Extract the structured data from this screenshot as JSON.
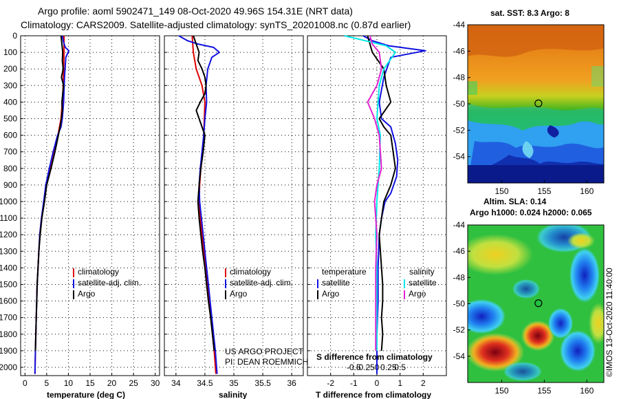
{
  "header": {
    "line1": "Argo profile: aoml 5902471_149 08-Oct-2020 49.96S 154.31E (NRT data)",
    "line2": "Climatology: CARS2009. Satellite-adjusted climatology: synTS_20201008.nc (0.87d earlier)"
  },
  "colors": {
    "climatology": "#e00000",
    "satellite": "#1010e0",
    "argo": "#000000",
    "sat_salinity": "#00e8e8",
    "argo_salinity": "#e020d0"
  },
  "chart_data": [
    {
      "type": "line",
      "name": "temperature-panel",
      "xlabel": "temperature (deg C)",
      "ylabel": "depth",
      "xlim": [
        -1,
        31
      ],
      "ylim": [
        2050,
        0
      ],
      "xticks": [
        0,
        5,
        10,
        15,
        20,
        25,
        30
      ],
      "xtick_labels": [
        "0",
        "5",
        "10",
        "15",
        "20",
        "25",
        "30"
      ],
      "yticks": [
        0,
        100,
        200,
        300,
        400,
        500,
        600,
        700,
        800,
        900,
        1000,
        1100,
        1200,
        1300,
        1400,
        1500,
        1600,
        1700,
        1800,
        1900,
        2000
      ],
      "ytick_labels": [
        "0",
        "100",
        "200",
        "300",
        "400",
        "500",
        "600",
        "700",
        "800",
        "900",
        "1000",
        "1100",
        "1200",
        "1300",
        "1400",
        "1500",
        "1600",
        "1700",
        "1800",
        "1900",
        "2000"
      ],
      "legend": [
        "climatology",
        "satellite-adj. clim.",
        "Argo"
      ],
      "series": [
        {
          "name": "climatology",
          "color": "#e00000",
          "x": [
            9.0,
            9.0,
            8.9,
            8.8,
            8.6,
            8.3,
            7.6,
            6.6,
            5.7,
            4.9,
            4.4,
            3.8,
            3.4,
            3.2,
            3.0,
            2.8,
            2.7,
            2.6,
            2.5,
            2.4,
            2.3
          ],
          "depth": [
            0,
            100,
            200,
            300,
            400,
            500,
            600,
            700,
            800,
            900,
            1000,
            1100,
            1200,
            1300,
            1400,
            1500,
            1600,
            1700,
            1800,
            1900,
            2040
          ]
        },
        {
          "name": "satellite-adj. clim.",
          "color": "#1010e0",
          "x": [
            8.6,
            8.9,
            9.3,
            10.1,
            9.4,
            9.1,
            8.9,
            8.6,
            8.3,
            7.5,
            6.5,
            5.6,
            4.8,
            4.3,
            3.8,
            3.4,
            3.2,
            3.0,
            2.8,
            2.7,
            2.6,
            2.5,
            2.4,
            2.3
          ],
          "depth": [
            0,
            40,
            70,
            90,
            130,
            250,
            400,
            500,
            550,
            600,
            700,
            800,
            900,
            1000,
            1100,
            1200,
            1300,
            1400,
            1500,
            1600,
            1700,
            1800,
            1900,
            2040
          ]
        },
        {
          "name": "Argo",
          "color": "#000000",
          "x": [
            8.3,
            8.5,
            8.7,
            8.6,
            8.8,
            8.4,
            8.9,
            8.7,
            8.5,
            8.6,
            8.4,
            8.1,
            7.7,
            6.9,
            6.0,
            5.0,
            4.5,
            3.9,
            3.5,
            3.2,
            3.0,
            2.8,
            2.7,
            2.6,
            2.5,
            2.4
          ],
          "depth": [
            0,
            50,
            100,
            150,
            200,
            250,
            300,
            350,
            400,
            450,
            500,
            550,
            600,
            700,
            800,
            900,
            1000,
            1100,
            1200,
            1300,
            1400,
            1500,
            1600,
            1700,
            1800,
            1900
          ]
        }
      ]
    },
    {
      "type": "line",
      "name": "salinity-panel",
      "xlabel": "salinity",
      "xlim": [
        33.8,
        36.2
      ],
      "ylim": [
        2050,
        0
      ],
      "xticks": [
        34,
        34.5,
        35,
        35.5,
        36
      ],
      "xtick_labels": [
        "34",
        "34.5",
        "35",
        "35.5",
        "36"
      ],
      "legend": [
        "climatology",
        "satellite-adj. clim.",
        "Argo"
      ],
      "annotation": [
        "US ARGO PROJECT",
        "PI: DEAN ROEMMICH"
      ],
      "series": [
        {
          "name": "climatology",
          "color": "#e00000",
          "x": [
            34.28,
            34.3,
            34.35,
            34.45,
            34.5,
            34.49,
            34.48,
            34.46,
            34.43,
            34.41,
            34.4,
            34.42,
            34.45,
            34.48,
            34.51,
            34.54,
            34.57,
            34.6,
            34.63,
            34.66,
            34.69
          ],
          "depth": [
            0,
            100,
            200,
            300,
            400,
            500,
            600,
            700,
            800,
            900,
            1000,
            1100,
            1200,
            1300,
            1400,
            1500,
            1600,
            1700,
            1800,
            1900,
            2040
          ]
        },
        {
          "name": "satellite-adj. clim.",
          "color": "#1010e0",
          "x": [
            34.05,
            34.2,
            34.38,
            34.65,
            34.75,
            34.62,
            34.55,
            34.52,
            34.53,
            34.5,
            34.48,
            34.45,
            34.42,
            34.4,
            34.41,
            34.44,
            34.47,
            34.5,
            34.53,
            34.56,
            34.59,
            34.62,
            34.65,
            34.68,
            34.71
          ],
          "depth": [
            0,
            30,
            50,
            70,
            100,
            130,
            200,
            300,
            400,
            500,
            600,
            700,
            800,
            900,
            1000,
            1100,
            1200,
            1300,
            1400,
            1500,
            1600,
            1700,
            1800,
            1900,
            2040
          ]
        },
        {
          "name": "Argo",
          "color": "#000000",
          "x": [
            34.3,
            34.35,
            34.4,
            34.38,
            34.45,
            34.5,
            34.52,
            34.5,
            34.42,
            34.35,
            34.4,
            34.45,
            34.5,
            34.47,
            34.43,
            34.4,
            34.38,
            34.4,
            34.43,
            34.46,
            34.5,
            34.53,
            34.56,
            34.6,
            34.63,
            34.66
          ],
          "depth": [
            0,
            50,
            100,
            150,
            200,
            250,
            300,
            350,
            400,
            450,
            500,
            550,
            600,
            700,
            800,
            900,
            1000,
            1100,
            1200,
            1300,
            1400,
            1500,
            1600,
            1700,
            1800,
            1900
          ]
        }
      ]
    },
    {
      "type": "line",
      "name": "difference-panel",
      "xlabel": "T difference from climatology",
      "xlabel_top": "S difference from climatology",
      "xlim": [
        -3,
        3
      ],
      "ylim": [
        2050,
        0
      ],
      "xticks": [
        -2,
        -1,
        0,
        1,
        2
      ],
      "xtick_labels": [
        "-2",
        "-1",
        "0",
        "1",
        "2"
      ],
      "s_xticks": [
        -0.5,
        -0.25,
        0,
        0.25,
        0.5
      ],
      "s_xtick_labels": [
        "-0.5",
        "-0.25",
        "0",
        "0.25",
        "0.5"
      ],
      "legend_headers": [
        "temperature",
        "salinity"
      ],
      "legend_left": [
        "satellite",
        "Argo"
      ],
      "legend_right": [
        "satellite",
        "Argo"
      ],
      "series": [
        {
          "name": "T satellite",
          "color": "#1010e0",
          "x": [
            -0.6,
            -0.2,
            0.5,
            2.1,
            0.6,
            0.3,
            0.1,
            0.2,
            0.6,
            0.8,
            0.9,
            0.85,
            0.6,
            0.35,
            0.2,
            0.1,
            0.05,
            0.05,
            0.0,
            0.0,
            0.0
          ],
          "depth": [
            0,
            30,
            60,
            90,
            130,
            250,
            400,
            500,
            550,
            650,
            750,
            850,
            950,
            1000,
            1100,
            1200,
            1400,
            1600,
            1800,
            1900,
            2040
          ]
        },
        {
          "name": "T Argo",
          "color": "#000000",
          "x": [
            -0.4,
            -0.3,
            -0.2,
            0.3,
            0.4,
            0.6,
            0.1,
            0.3,
            0.6,
            0.7,
            0.8,
            0.6,
            0.3,
            0.2,
            0.1,
            0.2,
            0.25,
            0.25,
            0.2,
            0.25,
            0.2
          ],
          "depth": [
            0,
            50,
            100,
            200,
            300,
            400,
            500,
            550,
            600,
            700,
            800,
            900,
            1000,
            1100,
            1200,
            1400,
            1500,
            1600,
            1700,
            1800,
            1900
          ]
        },
        {
          "name": "S satellite",
          "color": "#00e8e8",
          "x": [
            -1.4,
            -0.5,
            0.4,
            0.8,
            0.3,
            0.1,
            0.0,
            0.15,
            0.1,
            0.0,
            -0.05,
            0.0,
            0.0,
            0.0,
            0.0
          ],
          "depth": [
            0,
            30,
            60,
            100,
            200,
            300,
            500,
            600,
            800,
            1000,
            1200,
            1400,
            1600,
            1800,
            1900
          ]
        },
        {
          "name": "S Argo",
          "color": "#e020d0",
          "x": [
            -0.3,
            -0.2,
            0.1,
            0.2,
            0.0,
            -0.4,
            -0.1,
            0.1,
            0.2,
            0.0,
            -0.1,
            0.0,
            -0.05,
            -0.05,
            -0.05,
            -0.05
          ],
          "depth": [
            0,
            50,
            100,
            200,
            300,
            400,
            500,
            600,
            800,
            900,
            1000,
            1200,
            1400,
            1600,
            1800,
            1900
          ]
        }
      ]
    }
  ],
  "maps": [
    {
      "title": "sat. SST: 8.3 Argo: 8",
      "xticks": [
        150,
        155,
        160
      ],
      "xtick_labels": [
        "150",
        "155",
        "160"
      ],
      "yticks": [
        -44,
        -46,
        -48,
        -50,
        -52,
        -54
      ],
      "ytick_labels": [
        "-44",
        "-46",
        "-48",
        "-50",
        "-52",
        "-54"
      ],
      "lon_range": [
        146,
        162
      ],
      "lat_range": [
        -44,
        -56
      ],
      "marker_lon": 154.31,
      "marker_lat": -49.96
    },
    {
      "title_line1": "Altim. SLA: 0.14",
      "title_line2": "Argo h1000: 0.024 h2000: 0.065",
      "xticks": [
        150,
        155,
        160
      ],
      "xtick_labels": [
        "150",
        "155",
        "160"
      ],
      "yticks": [
        -44,
        -46,
        -48,
        -50,
        -52,
        -54
      ],
      "ytick_labels": [
        "-44",
        "-46",
        "-48",
        "-50",
        "-52",
        "-54"
      ],
      "lon_range": [
        146,
        162
      ],
      "lat_range": [
        -44,
        -56
      ],
      "marker_lon": 154.31,
      "marker_lat": -49.96
    }
  ],
  "credit": "©IMOS 13-Oct-2020 11:40:00"
}
